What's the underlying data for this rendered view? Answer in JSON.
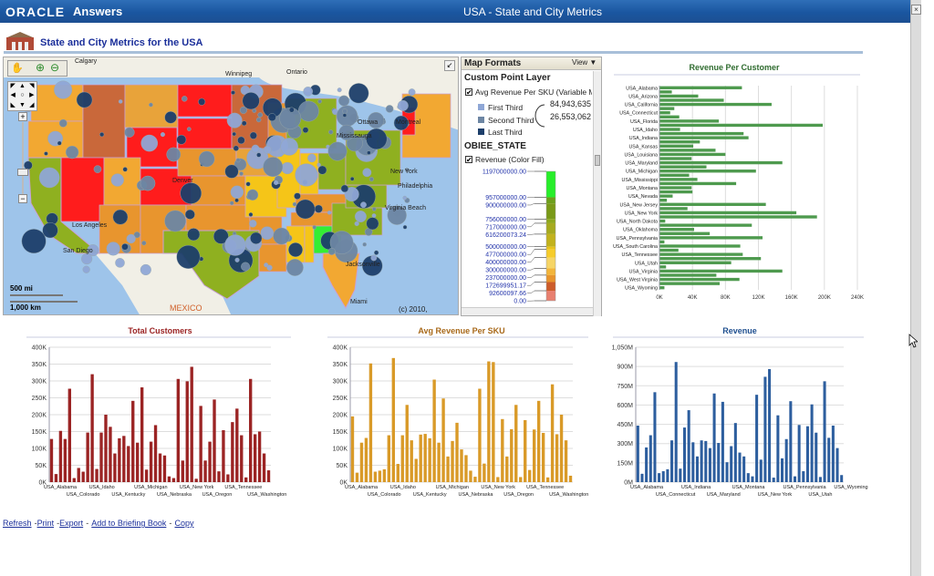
{
  "header": {
    "logo": "ORACLE",
    "app": "Answers",
    "window_title": "USA - State and City Metrics",
    "close": "×"
  },
  "page": {
    "title": "State and City Metrics for the USA"
  },
  "map": {
    "labels": [
      "Calgary",
      "Winnipeg",
      "Ontario",
      "Ottawa",
      "Mississauga",
      "Montreal",
      "New York",
      "Philadelphia",
      "Virginia Beach",
      "Jacksonville",
      "Miami",
      "San Diego",
      "Los Angeles",
      "Denver"
    ],
    "country_label": "MEXICO",
    "scale_mi": "500 mi",
    "scale_km": "1,000 km",
    "copyright": "(c) 2010, NAVTEQ"
  },
  "map_formats": {
    "title": "Map Formats",
    "view": "View ▼",
    "point_layer": "Custom Point Layer",
    "point_series": "Avg Revenue Per SKU (Variable Mar",
    "thirds": [
      {
        "label": "First Third",
        "color": "#8fa7d6"
      },
      {
        "label": "Second Third",
        "color": "#6d86a3"
      },
      {
        "label": "Last Third",
        "color": "#1c3e6a"
      }
    ],
    "size_values": [
      "84,943,635",
      "26,553,062"
    ],
    "state_layer": "OBIEE_STATE",
    "fill_series": "Revenue (Color Fill)",
    "scale_labels": [
      {
        "text": "1197000000.00",
        "value": 1197000000
      },
      {
        "text": "957000000.00",
        "value": 957000000
      },
      {
        "text": "900000000.00",
        "value": 900000000
      },
      {
        "text": "756000000.00",
        "value": 756000000
      },
      {
        "text": "717000000.00",
        "value": 717000000
      },
      {
        "text": "616200073.24",
        "value": 616200073.24
      },
      {
        "text": "500000000.00",
        "value": 500000000
      },
      {
        "text": "477000000.00",
        "value": 477000000
      },
      {
        "text": "400000000.00",
        "value": 400000000
      },
      {
        "text": "300000000.00",
        "value": 300000000
      },
      {
        "text": "237000000.00",
        "value": 237000000
      },
      {
        "text": "172699951.17",
        "value": 172699951.17
      },
      {
        "text": "92600097.66",
        "value": 92600097.66
      },
      {
        "text": "0.00",
        "value": 0
      }
    ],
    "scale_colors": [
      "#27ee2a",
      "#6e9f1c",
      "#7a9a18",
      "#8fa81e",
      "#a6aa1e",
      "#c2b21c",
      "#e7c21a",
      "#f6cc2a",
      "#f6d566",
      "#f2b53a",
      "#e8942c",
      "#cd5c2a",
      "#e88070",
      "#ff1c1c"
    ]
  },
  "chart_data": [
    {
      "type": "bar",
      "orientation": "horizontal",
      "title": "Revenue Per Customer",
      "color": "#4e9a4e",
      "title_color": "#2e6b2e",
      "categories": [
        "USA_Alabama",
        "USA_Alaska",
        "USA_Arizona",
        "USA_Arkansas",
        "USA_California",
        "USA_Colorado",
        "USA_Connecticut",
        "USA_Delaware",
        "USA_Florida",
        "USA_Georgia",
        "USA_Idaho",
        "USA_Illinois",
        "USA_Indiana",
        "USA_Iowa",
        "USA_Kansas",
        "USA_Kentucky",
        "USA_Louisiana",
        "USA_Maine",
        "USA_Maryland",
        "USA_Massachusetts",
        "USA_Michigan",
        "USA_Minnesota",
        "USA_Mississippi",
        "USA_Missouri",
        "USA_Montana",
        "USA_Nebraska",
        "USA_Nevada",
        "USA_New Hampshire",
        "USA_New Jersey",
        "USA_New Mexico",
        "USA_New York",
        "USA_North Carolina",
        "USA_North Dakota",
        "USA_Ohio",
        "USA_Oklahoma",
        "USA_Oregon",
        "USA_Pennsylvania",
        "USA_Rhode Island",
        "USA_South Carolina",
        "USA_South Dakota",
        "USA_Tennessee",
        "USA_Texas",
        "USA_Utah",
        "USA_Vermont",
        "USA_Virginia",
        "USA_Washington",
        "USA_West Virginia",
        "USA_Wisconsin",
        "USA_Wyoming"
      ],
      "values": [
        100,
        15,
        47,
        78,
        136,
        18,
        13,
        24,
        72,
        198,
        25,
        102,
        108,
        49,
        41,
        68,
        80,
        39,
        149,
        57,
        117,
        36,
        46,
        93,
        39,
        40,
        16,
        9,
        129,
        34,
        166,
        191,
        7,
        112,
        42,
        61,
        125,
        6,
        98,
        23,
        101,
        123,
        87,
        8,
        149,
        69,
        97,
        73,
        6
      ],
      "unit": "K",
      "xlim": [
        0,
        240
      ],
      "ticks": [
        "0K",
        "40K",
        "80K",
        "120K",
        "160K",
        "200K",
        "240K"
      ],
      "tick_labels": [
        "USA_Alabama",
        "USA_Arizona",
        "USA_California",
        "USA_Connecticut",
        "USA_Florida",
        "USA_Idaho",
        "USA_Indiana",
        "USA_Kansas",
        "USA_Louisiana",
        "USA_Maryland",
        "USA_Michigan",
        "USA_Mississippi",
        "USA_Montana",
        "USA_Nevada",
        "USA_New Jersey",
        "USA_New York",
        "USA_North Dakota",
        "USA_Oklahoma",
        "USA_Pennsylvania",
        "USA_South Carolina",
        "USA_Tennessee",
        "USA_Utah",
        "USA_Virginia",
        "USA_West Virginia",
        "USA_Wyoming"
      ]
    },
    {
      "type": "bar",
      "title": "Total Customers",
      "color": "#9b2424",
      "title_color": "#9b2424",
      "ylim": [
        0,
        400
      ],
      "unit": "K",
      "ticks": [
        "0K",
        "50K",
        "100K",
        "150K",
        "200K",
        "250K",
        "300K",
        "350K",
        "400K"
      ],
      "values": [
        128,
        24,
        152,
        128,
        277,
        12,
        42,
        31,
        147,
        320,
        39,
        147,
        200,
        164,
        85,
        130,
        137,
        107,
        241,
        117,
        281,
        37,
        120,
        169,
        85,
        79,
        17,
        12,
        306,
        64,
        299,
        342,
        10,
        226,
        64,
        120,
        245,
        32,
        154,
        23,
        178,
        218,
        139,
        14,
        306,
        142,
        150,
        85,
        35
      ],
      "tick_labels": [
        "USA_Alabama",
        "USA_Colorado",
        "USA_Idaho",
        "USA_Kentucky",
        "USA_Michigan",
        "USA_Nebraska",
        "USA_New York",
        "USA_Oregon",
        "USA_Tennessee",
        "USA_Washington"
      ],
      "label_step": 5
    },
    {
      "type": "bar",
      "title": "Avg Revenue Per SKU",
      "color": "#d99a28",
      "title_color": "#a8691a",
      "ylim": [
        0,
        400
      ],
      "unit": "K",
      "ticks": [
        "0K",
        "50K",
        "100K",
        "150K",
        "200K",
        "250K",
        "300K",
        "350K",
        "400K"
      ],
      "values": [
        195,
        28,
        117,
        131,
        352,
        31,
        34,
        38,
        139,
        368,
        54,
        139,
        229,
        124,
        69,
        141,
        143,
        130,
        304,
        117,
        248,
        76,
        122,
        176,
        97,
        80,
        34,
        16,
        277,
        55,
        358,
        356,
        15,
        187,
        76,
        157,
        229,
        15,
        184,
        36,
        156,
        241,
        146,
        14,
        290,
        142,
        200,
        124,
        19
      ],
      "tick_labels": [
        "USA_Alabama",
        "USA_Colorado",
        "USA_Idaho",
        "USA_Kentucky",
        "USA_Michigan",
        "USA_Nebraska",
        "USA_New York",
        "USA_Oregon",
        "USA_Tennessee",
        "USA_Washington"
      ],
      "label_step": 5
    },
    {
      "type": "bar",
      "title": "Revenue",
      "color": "#2d5e9e",
      "title_color": "#1f4f8f",
      "ylim": [
        0,
        1050
      ],
      "unit": "M",
      "ticks": [
        "0M",
        "150M",
        "300M",
        "450M",
        "600M",
        "750M",
        "900M",
        "1,050M"
      ],
      "values": [
        440,
        65,
        270,
        365,
        700,
        70,
        85,
        100,
        325,
        935,
        105,
        425,
        560,
        310,
        200,
        325,
        320,
        265,
        690,
        305,
        625,
        155,
        280,
        460,
        230,
        200,
        70,
        45,
        680,
        175,
        820,
        880,
        35,
        520,
        185,
        335,
        630,
        45,
        445,
        85,
        435,
        605,
        385,
        40,
        785,
        345,
        440,
        265,
        55
      ],
      "tick_labels": [
        "USA_Alabama",
        "USA_Connecticut",
        "USA_Indiana",
        "USA_Maryland",
        "USA_Montana",
        "USA_New York",
        "USA_Pennsylvania",
        "USA_Utah",
        "USA_Wyoming"
      ],
      "label_step": 6
    }
  ],
  "footer": {
    "links": [
      "Refresh",
      "Print",
      "Export",
      "Add to Briefing Book",
      "Copy"
    ]
  }
}
